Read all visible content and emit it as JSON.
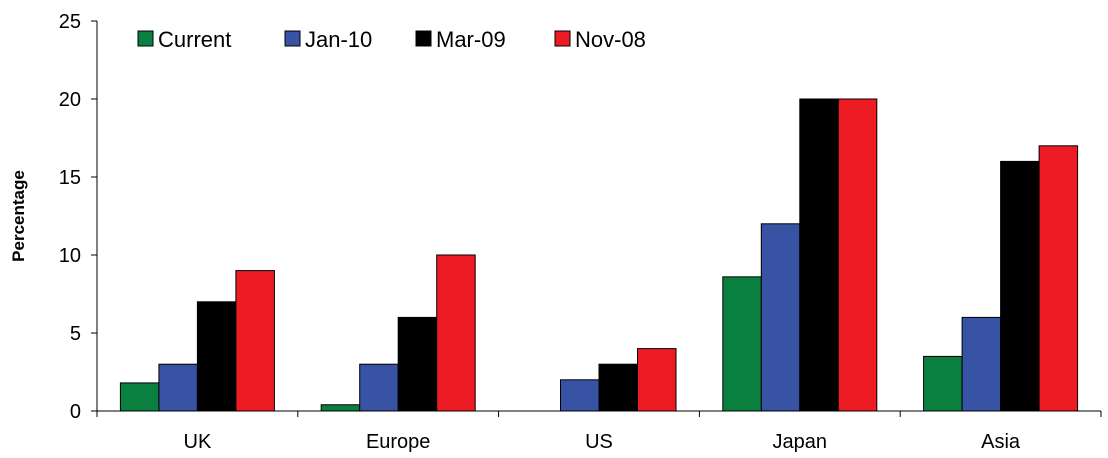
{
  "chart_data": {
    "type": "bar",
    "title": "",
    "xlabel": "",
    "ylabel": "Percentage",
    "ylim": [
      0,
      25
    ],
    "yticks": [
      0,
      5,
      10,
      15,
      20,
      25
    ],
    "grid": false,
    "legend_position": "top-left",
    "categories": [
      "UK",
      "Europe",
      "US",
      "Japan",
      "Asia"
    ],
    "series": [
      {
        "name": "Current",
        "color": "#0a8040",
        "values": [
          1.8,
          0.4,
          0,
          8.6,
          3.5
        ]
      },
      {
        "name": "Jan-10",
        "color": "#3853a4",
        "values": [
          3,
          3,
          2,
          12,
          6
        ]
      },
      {
        "name": "Mar-09",
        "color": "#000000",
        "values": [
          7,
          6,
          3,
          20,
          16
        ]
      },
      {
        "name": "Nov-08",
        "color": "#ed1c24",
        "values": [
          9,
          10,
          4,
          20,
          17
        ]
      }
    ]
  }
}
